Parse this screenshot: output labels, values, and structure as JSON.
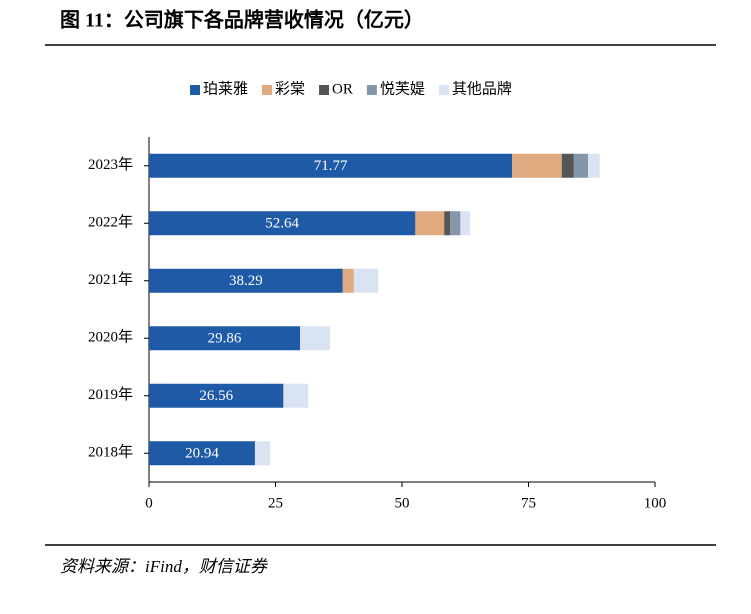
{
  "chart_data": {
    "type": "stacked-barh",
    "title": "图 11：公司旗下各品牌营收情况（亿元）",
    "source": "资料来源：iFind，财信证券",
    "categories": [
      "2023年",
      "2022年",
      "2021年",
      "2020年",
      "2019年",
      "2018年"
    ],
    "series": [
      {
        "name": "珀莱雅",
        "color": "#1f5aa6",
        "values": [
          71.77,
          52.64,
          38.29,
          29.86,
          26.56,
          20.94
        ],
        "labeled": true
      },
      {
        "name": "彩棠",
        "color": "#e0aa80",
        "values": [
          9.8,
          5.7,
          2.2,
          0,
          0,
          0
        ]
      },
      {
        "name": "OR",
        "color": "#555555",
        "values": [
          2.4,
          1.2,
          0,
          0,
          0,
          0
        ]
      },
      {
        "name": "悦芙媞",
        "color": "#8496a9",
        "values": [
          2.8,
          2.0,
          0,
          0,
          0,
          0
        ]
      },
      {
        "name": "其他品牌",
        "color": "#dae3f1",
        "values": [
          2.3,
          1.9,
          4.8,
          5.9,
          4.9,
          3.0
        ]
      }
    ],
    "xlim": [
      0,
      100
    ],
    "xticks": [
      0,
      25,
      50,
      75,
      100
    ],
    "legend": "top"
  }
}
